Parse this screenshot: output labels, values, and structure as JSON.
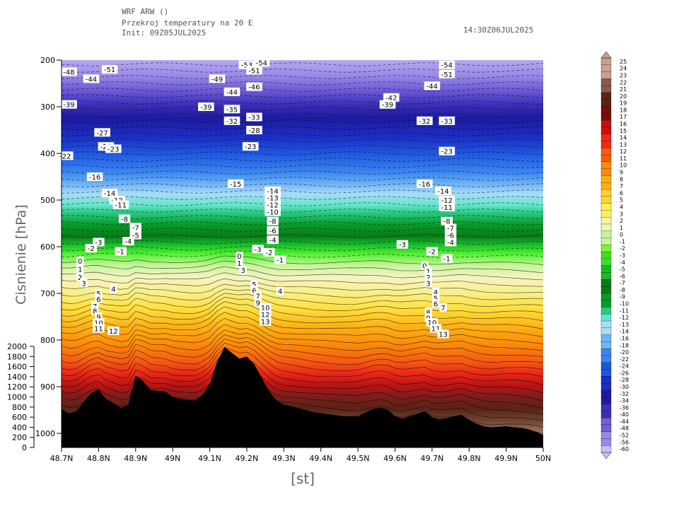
{
  "header": {
    "line1": "WRF ARW ()",
    "line2": "Przekroj temperatury na 20 E",
    "line3": "Init: 09Z05JUL2025",
    "valid": "14:30Z06JUL2025"
  },
  "chart_data": {
    "type": "heatmap",
    "title": "Przekroj temperatury na 20 E",
    "xlabel": "[st]",
    "ylabel": "Cisnienie [hPa]",
    "x_ticks": [
      "48.7N",
      "48.8N",
      "48.9N",
      "49N",
      "49.1N",
      "49.2N",
      "49.3N",
      "49.4N",
      "49.5N",
      "49.6N",
      "49.7N",
      "49.8N",
      "49.9N",
      "50N"
    ],
    "xlim": [
      48.7,
      50.0
    ],
    "y_ticks": [
      200,
      300,
      400,
      500,
      600,
      700,
      800,
      900,
      1000
    ],
    "ylim": [
      1000,
      200
    ],
    "height_ticks": [
      2000,
      1800,
      1600,
      1400,
      1200,
      1000,
      800,
      600,
      400,
      200,
      0
    ],
    "colorbar_levels": [
      25,
      24,
      23,
      22,
      21,
      20,
      19,
      18,
      17,
      16,
      15,
      14,
      13,
      12,
      11,
      10,
      9,
      8,
      7,
      6,
      5,
      4,
      3,
      2,
      1,
      0,
      -1,
      -2,
      -3,
      -4,
      -5,
      -6,
      -7,
      -8,
      -9,
      -10,
      -11,
      -12,
      -13,
      -14,
      -16,
      -18,
      -20,
      -22,
      -24,
      -26,
      -28,
      -30,
      -32,
      -34,
      -36,
      -40,
      -44,
      -48,
      -52,
      -56,
      -60
    ],
    "colors": {
      "hot": "#8b4513",
      "red": "#e8201a",
      "orange": "#ff8c00",
      "yellow": "#ffe000",
      "lime": "#a0e040",
      "green": "#008000",
      "cyan": "#40e0d0",
      "blue": "#1e4fd8",
      "navy": "#1a1a8a",
      "violet": "#a080e8",
      "terrain": "#000000"
    },
    "terrain_profile": {
      "lat": [
        48.7,
        48.72,
        48.74,
        48.76,
        48.78,
        48.8,
        48.82,
        48.84,
        48.86,
        48.88,
        48.9,
        48.92,
        48.94,
        48.96,
        48.98,
        49.0,
        49.02,
        49.04,
        49.06,
        49.08,
        49.1,
        49.12,
        49.14,
        49.16,
        49.18,
        49.2,
        49.22,
        49.24,
        49.26,
        49.28,
        49.3,
        49.32,
        49.34,
        49.36,
        49.38,
        49.4,
        49.42,
        49.44,
        49.46,
        49.48,
        49.5,
        49.52,
        49.54,
        49.56,
        49.58,
        49.6,
        49.62,
        49.64,
        49.66,
        49.68,
        49.7,
        49.72,
        49.74,
        49.76,
        49.78,
        49.8,
        49.82,
        49.84,
        49.86,
        49.88,
        49.9,
        49.92,
        49.94,
        49.96,
        49.98,
        50.0
      ],
      "height_m": [
        760,
        680,
        720,
        900,
        1080,
        1150,
        960,
        880,
        780,
        840,
        1420,
        1320,
        1140,
        1120,
        1110,
        1000,
        960,
        940,
        930,
        1040,
        1250,
        1700,
        1990,
        1870,
        1760,
        1800,
        1650,
        1380,
        1120,
        930,
        850,
        820,
        780,
        740,
        700,
        680,
        660,
        640,
        620,
        620,
        620,
        690,
        760,
        790,
        750,
        620,
        570,
        620,
        660,
        720,
        600,
        560,
        580,
        620,
        650,
        540,
        470,
        420,
        400,
        410,
        420,
        400,
        390,
        360,
        310,
        250
      ]
    },
    "contour_labels": [
      {
        "lat": 48.72,
        "p": 225,
        "v": "-48"
      },
      {
        "lat": 48.78,
        "p": 240,
        "v": "-44"
      },
      {
        "lat": 48.83,
        "p": 220,
        "v": "-51"
      },
      {
        "lat": 48.72,
        "p": 295,
        "v": "-39"
      },
      {
        "lat": 48.81,
        "p": 355,
        "v": "-27"
      },
      {
        "lat": 48.82,
        "p": 385,
        "v": "-26"
      },
      {
        "lat": 48.84,
        "p": 390,
        "v": "-23"
      },
      {
        "lat": 48.71,
        "p": 405,
        "v": "-22"
      },
      {
        "lat": 48.79,
        "p": 450,
        "v": "-16"
      },
      {
        "lat": 48.83,
        "p": 485,
        "v": "-14"
      },
      {
        "lat": 48.85,
        "p": 500,
        "v": "-12"
      },
      {
        "lat": 48.86,
        "p": 510,
        "v": "-11"
      },
      {
        "lat": 48.87,
        "p": 540,
        "v": "-8"
      },
      {
        "lat": 48.9,
        "p": 558,
        "v": "-7"
      },
      {
        "lat": 48.9,
        "p": 575,
        "v": "-5"
      },
      {
        "lat": 48.88,
        "p": 588,
        "v": "-4"
      },
      {
        "lat": 48.8,
        "p": 590,
        "v": "-3"
      },
      {
        "lat": 48.78,
        "p": 603,
        "v": "-2"
      },
      {
        "lat": 48.86,
        "p": 610,
        "v": "-1"
      },
      {
        "lat": 48.75,
        "p": 630,
        "v": "0"
      },
      {
        "lat": 48.75,
        "p": 648,
        "v": "1"
      },
      {
        "lat": 48.75,
        "p": 665,
        "v": "2"
      },
      {
        "lat": 48.76,
        "p": 678,
        "v": "3"
      },
      {
        "lat": 48.84,
        "p": 690,
        "v": "4"
      },
      {
        "lat": 48.8,
        "p": 700,
        "v": "5"
      },
      {
        "lat": 48.8,
        "p": 712,
        "v": "6"
      },
      {
        "lat": 48.79,
        "p": 727,
        "v": "7"
      },
      {
        "lat": 48.79,
        "p": 737,
        "v": "8"
      },
      {
        "lat": 48.8,
        "p": 750,
        "v": "9"
      },
      {
        "lat": 48.8,
        "p": 763,
        "v": "10"
      },
      {
        "lat": 48.8,
        "p": 775,
        "v": "11"
      },
      {
        "lat": 48.84,
        "p": 780,
        "v": "12"
      },
      {
        "lat": 49.12,
        "p": 240,
        "v": "-49"
      },
      {
        "lat": 49.2,
        "p": 210,
        "v": "-53"
      },
      {
        "lat": 49.24,
        "p": 205,
        "v": "-54"
      },
      {
        "lat": 49.22,
        "p": 222,
        "v": "-51"
      },
      {
        "lat": 49.22,
        "p": 257,
        "v": "-46"
      },
      {
        "lat": 49.16,
        "p": 268,
        "v": "-44"
      },
      {
        "lat": 49.09,
        "p": 300,
        "v": "-39"
      },
      {
        "lat": 49.16,
        "p": 305,
        "v": "-35"
      },
      {
        "lat": 49.16,
        "p": 330,
        "v": "-32"
      },
      {
        "lat": 49.22,
        "p": 322,
        "v": "-33"
      },
      {
        "lat": 49.22,
        "p": 350,
        "v": "-28"
      },
      {
        "lat": 49.21,
        "p": 385,
        "v": "-23"
      },
      {
        "lat": 49.17,
        "p": 465,
        "v": "-15"
      },
      {
        "lat": 49.27,
        "p": 480,
        "v": "-14"
      },
      {
        "lat": 49.27,
        "p": 495,
        "v": "-13"
      },
      {
        "lat": 49.27,
        "p": 510,
        "v": "-12"
      },
      {
        "lat": 49.27,
        "p": 525,
        "v": "-10"
      },
      {
        "lat": 49.27,
        "p": 545,
        "v": "-8"
      },
      {
        "lat": 49.27,
        "p": 565,
        "v": "-6"
      },
      {
        "lat": 49.27,
        "p": 585,
        "v": "-4"
      },
      {
        "lat": 49.23,
        "p": 605,
        "v": "-3"
      },
      {
        "lat": 49.26,
        "p": 612,
        "v": "-2"
      },
      {
        "lat": 49.29,
        "p": 628,
        "v": "-1"
      },
      {
        "lat": 49.18,
        "p": 620,
        "v": "0"
      },
      {
        "lat": 49.18,
        "p": 635,
        "v": "1"
      },
      {
        "lat": 49.19,
        "p": 650,
        "v": "3"
      },
      {
        "lat": 49.22,
        "p": 680,
        "v": "5"
      },
      {
        "lat": 49.22,
        "p": 693,
        "v": "6"
      },
      {
        "lat": 49.23,
        "p": 705,
        "v": "7"
      },
      {
        "lat": 49.23,
        "p": 720,
        "v": "9"
      },
      {
        "lat": 49.25,
        "p": 730,
        "v": "10"
      },
      {
        "lat": 49.25,
        "p": 745,
        "v": "12"
      },
      {
        "lat": 49.25,
        "p": 760,
        "v": "13"
      },
      {
        "lat": 49.29,
        "p": 695,
        "v": "4"
      },
      {
        "lat": 49.59,
        "p": 280,
        "v": "-42"
      },
      {
        "lat": 49.58,
        "p": 295,
        "v": "-39"
      },
      {
        "lat": 49.7,
        "p": 255,
        "v": "-44"
      },
      {
        "lat": 49.74,
        "p": 210,
        "v": "-54"
      },
      {
        "lat": 49.74,
        "p": 230,
        "v": "-51"
      },
      {
        "lat": 49.68,
        "p": 330,
        "v": "-32"
      },
      {
        "lat": 49.74,
        "p": 330,
        "v": "-33"
      },
      {
        "lat": 49.74,
        "p": 395,
        "v": "-23"
      },
      {
        "lat": 49.68,
        "p": 465,
        "v": "-16"
      },
      {
        "lat": 49.73,
        "p": 480,
        "v": "-14"
      },
      {
        "lat": 49.74,
        "p": 500,
        "v": "-12"
      },
      {
        "lat": 49.74,
        "p": 515,
        "v": "-11"
      },
      {
        "lat": 49.74,
        "p": 545,
        "v": "-8"
      },
      {
        "lat": 49.75,
        "p": 560,
        "v": "-7"
      },
      {
        "lat": 49.75,
        "p": 575,
        "v": "-6"
      },
      {
        "lat": 49.75,
        "p": 590,
        "v": "-4"
      },
      {
        "lat": 49.62,
        "p": 595,
        "v": "-3"
      },
      {
        "lat": 49.7,
        "p": 610,
        "v": "-2"
      },
      {
        "lat": 49.74,
        "p": 625,
        "v": "-1"
      },
      {
        "lat": 49.68,
        "p": 640,
        "v": "0"
      },
      {
        "lat": 49.69,
        "p": 652,
        "v": "1"
      },
      {
        "lat": 49.69,
        "p": 665,
        "v": "2"
      },
      {
        "lat": 49.69,
        "p": 678,
        "v": "3"
      },
      {
        "lat": 49.71,
        "p": 697,
        "v": "4"
      },
      {
        "lat": 49.71,
        "p": 710,
        "v": "5"
      },
      {
        "lat": 49.71,
        "p": 722,
        "v": "6"
      },
      {
        "lat": 49.73,
        "p": 730,
        "v": "7"
      },
      {
        "lat": 49.69,
        "p": 740,
        "v": "8"
      },
      {
        "lat": 49.69,
        "p": 752,
        "v": "9"
      },
      {
        "lat": 49.7,
        "p": 762,
        "v": "10"
      },
      {
        "lat": 49.71,
        "p": 775,
        "v": "11"
      },
      {
        "lat": 49.73,
        "p": 787,
        "v": "13"
      }
    ]
  }
}
